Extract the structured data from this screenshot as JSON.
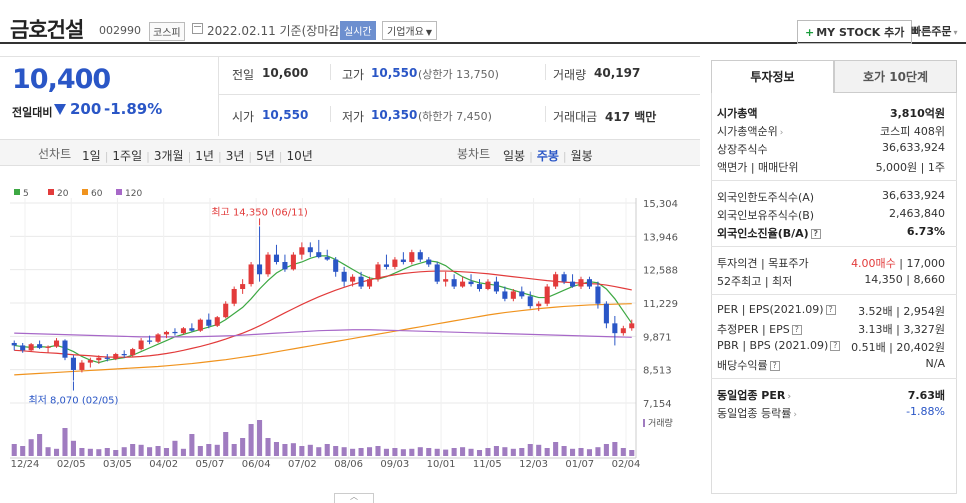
{
  "header": {
    "company": "금호건설",
    "code": "002990",
    "market": "코스피",
    "date_basis": "2022.02.11 기준(장마감)",
    "realtime": "실시간",
    "corp_overview": "기업개요",
    "mystock": "MY STOCK 추가",
    "quick_order": "빠른주문"
  },
  "price": {
    "current": "10,400",
    "compare_label": "전일대비",
    "change": "200",
    "change_pct": "-1.89%",
    "direction": "down",
    "accent_down": "#2a56c6",
    "accent_up": "#e23b3b"
  },
  "quote": {
    "prev_close_label": "전일",
    "prev_close": "10,600",
    "high_label": "고가",
    "high": "10,550",
    "upper_limit": "(상한가 13,750)",
    "volume_label": "거래량",
    "volume": "40,197",
    "open_label": "시가",
    "open": "10,550",
    "low_label": "저가",
    "low": "10,350",
    "lower_limit": "(하한가 7,450)",
    "amount_label": "거래대금",
    "amount": "417 백만"
  },
  "chart_toolbar": {
    "range_label": "선차트",
    "ranges": [
      "1일",
      "1주일",
      "3개월",
      "1년",
      "3년",
      "5년",
      "10년"
    ],
    "candle_label": "봉차트",
    "candles": [
      "일봉",
      "주봉",
      "월봉"
    ],
    "selected_candle": "주봉"
  },
  "chart_data": {
    "type": "candlestick",
    "legend": [
      "5",
      "20",
      "60",
      "120"
    ],
    "legend_colors": [
      "#3da843",
      "#e23b3b",
      "#f0931e",
      "#a768c8"
    ],
    "y_ticks": [
      "15,304",
      "13,946",
      "12,588",
      "11,229",
      "9,871",
      "8,513",
      "7,154"
    ],
    "ylim": [
      7154,
      15304
    ],
    "x_ticks": [
      "12/24",
      "02/05",
      "03/05",
      "04/02",
      "05/07",
      "06/04",
      "07/02",
      "08/06",
      "09/03",
      "10/01",
      "11/05",
      "12/03",
      "01/07",
      "02/04"
    ],
    "max_annotation": "최고 14,350 (06/11)",
    "min_annotation": "최저 8,070 (02/05)",
    "volume_label": "거래량",
    "candles": [
      [
        9600,
        9700,
        9300,
        9500
      ],
      [
        9500,
        9600,
        9200,
        9300
      ],
      [
        9300,
        9600,
        9250,
        9550
      ],
      [
        9550,
        9700,
        9350,
        9400
      ],
      [
        9400,
        9500,
        9200,
        9450
      ],
      [
        9450,
        9800,
        9400,
        9700
      ],
      [
        9700,
        9750,
        8900,
        9000
      ],
      [
        9000,
        9100,
        8070,
        8500
      ],
      [
        8500,
        8900,
        8400,
        8800
      ],
      [
        8800,
        9000,
        8600,
        8900
      ],
      [
        8900,
        9100,
        8750,
        9000
      ],
      [
        9000,
        9150,
        8850,
        8950
      ],
      [
        8950,
        9200,
        8900,
        9150
      ],
      [
        9150,
        9300,
        9000,
        9100
      ],
      [
        9100,
        9400,
        9050,
        9350
      ],
      [
        9350,
        9800,
        9300,
        9700
      ],
      [
        9700,
        9900,
        9550,
        9650
      ],
      [
        9650,
        10000,
        9600,
        9950
      ],
      [
        9950,
        10100,
        9800,
        10050
      ],
      [
        10050,
        10200,
        9900,
        10000
      ],
      [
        10000,
        10250,
        9950,
        10200
      ],
      [
        10200,
        10400,
        10050,
        10100
      ],
      [
        10100,
        10600,
        10050,
        10550
      ],
      [
        10550,
        10800,
        10200,
        10300
      ],
      [
        10300,
        10700,
        10250,
        10650
      ],
      [
        10650,
        11300,
        10600,
        11200
      ],
      [
        11200,
        11900,
        11100,
        11800
      ],
      [
        11800,
        12200,
        11600,
        12000
      ],
      [
        12000,
        12900,
        11900,
        12800
      ],
      [
        12800,
        14350,
        12100,
        12400
      ],
      [
        12400,
        13300,
        12300,
        13200
      ],
      [
        13200,
        13600,
        12800,
        12900
      ],
      [
        12900,
        13200,
        12500,
        12600
      ],
      [
        12600,
        13300,
        12550,
        13200
      ],
      [
        13200,
        13700,
        13000,
        13500
      ],
      [
        13500,
        13700,
        13100,
        13300
      ],
      [
        13300,
        13800,
        13050,
        13100
      ],
      [
        13100,
        13400,
        12950,
        13000
      ],
      [
        13000,
        13100,
        12300,
        12500
      ],
      [
        12500,
        12700,
        11900,
        12100
      ],
      [
        12100,
        12400,
        11900,
        12300
      ],
      [
        12300,
        12500,
        11800,
        11900
      ],
      [
        11900,
        12300,
        11800,
        12200
      ],
      [
        12200,
        12900,
        12100,
        12800
      ],
      [
        12800,
        13200,
        12600,
        12700
      ],
      [
        12700,
        13100,
        12600,
        13000
      ],
      [
        13000,
        13300,
        12800,
        12900
      ],
      [
        12900,
        13400,
        12800,
        13300
      ],
      [
        13300,
        13400,
        12900,
        13000
      ],
      [
        13000,
        13100,
        12700,
        12800
      ],
      [
        12800,
        12900,
        12000,
        12100
      ],
      [
        12100,
        12500,
        11900,
        12200
      ],
      [
        12200,
        12400,
        11800,
        11900
      ],
      [
        11900,
        12300,
        11850,
        12100
      ],
      [
        12100,
        12400,
        11900,
        12000
      ],
      [
        12000,
        12200,
        11700,
        11800
      ],
      [
        11800,
        12200,
        11750,
        12100
      ],
      [
        12100,
        12300,
        11600,
        11700
      ],
      [
        11700,
        11900,
        11300,
        11400
      ],
      [
        11400,
        11800,
        11300,
        11700
      ],
      [
        11700,
        11900,
        11400,
        11500
      ],
      [
        11500,
        11700,
        11000,
        11100
      ],
      [
        11100,
        11300,
        10900,
        11200
      ],
      [
        11200,
        12000,
        11100,
        11900
      ],
      [
        11900,
        12500,
        11800,
        12400
      ],
      [
        12400,
        12500,
        12000,
        12100
      ],
      [
        12100,
        12400,
        11850,
        11900
      ],
      [
        11900,
        12300,
        11800,
        12200
      ],
      [
        12200,
        12300,
        11800,
        11900
      ],
      [
        11900,
        12100,
        11000,
        11200
      ],
      [
        11200,
        11300,
        10200,
        10400
      ],
      [
        10400,
        10700,
        9500,
        10000
      ],
      [
        10000,
        10300,
        9900,
        10200
      ],
      [
        10200,
        10550,
        10100,
        10400
      ]
    ],
    "volumes": [
      30,
      25,
      42,
      55,
      22,
      18,
      70,
      38,
      20,
      18,
      17,
      20,
      15,
      22,
      30,
      28,
      22,
      25,
      20,
      38,
      18,
      55,
      25,
      30,
      28,
      60,
      30,
      45,
      80,
      90,
      45,
      35,
      30,
      32,
      25,
      28,
      22,
      30,
      25,
      22,
      18,
      20,
      22,
      25,
      18,
      20,
      17,
      18,
      22,
      20,
      18,
      16,
      20,
      22,
      18,
      15,
      20,
      25,
      22,
      18,
      20,
      30,
      28,
      20,
      35,
      25,
      18,
      20,
      17,
      22,
      30,
      35,
      20,
      15
    ],
    "ma5": [
      9500,
      9450,
      9420,
      9450,
      9430,
      9500,
      9400,
      9250,
      9050,
      8900,
      8800,
      8900,
      8950,
      9000,
      9100,
      9250,
      9400,
      9550,
      9700,
      9850,
      9950,
      10050,
      10150,
      10250,
      10350,
      10550,
      10800,
      11050,
      11400,
      11800,
      12150,
      12450,
      12650,
      12800,
      12900,
      13050,
      13150,
      13150,
      13000,
      12800,
      12600,
      12400,
      12250,
      12200,
      12300,
      12450,
      12600,
      12750,
      12850,
      12950,
      12900,
      12750,
      12500,
      12300,
      12150,
      12050,
      12000,
      11950,
      11850,
      11750,
      11650,
      11550,
      11450,
      11450,
      11600,
      11750,
      11900,
      12000,
      12100,
      12050,
      11800,
      11400,
      10900,
      10400
    ],
    "ma20": [
      9300,
      9280,
      9250,
      9220,
      9200,
      9180,
      9150,
      9120,
      9100,
      9080,
      9050,
      9030,
      9020,
      9020,
      9030,
      9050,
      9080,
      9120,
      9170,
      9230,
      9300,
      9380,
      9460,
      9550,
      9650,
      9760,
      9880,
      10000,
      10140,
      10300,
      10470,
      10650,
      10830,
      11000,
      11170,
      11330,
      11480,
      11620,
      11750,
      11870,
      11980,
      12080,
      12170,
      12250,
      12320,
      12380,
      12430,
      12470,
      12500,
      12520,
      12530,
      12530,
      12520,
      12500,
      12480,
      12450,
      12420,
      12380,
      12340,
      12300,
      12260,
      12220,
      12180,
      12140,
      12110,
      12080,
      12060,
      12040,
      12020,
      12000,
      11960,
      11900,
      11830,
      11760
    ],
    "ma60": [
      8300,
      8320,
      8340,
      8360,
      8380,
      8400,
      8420,
      8440,
      8460,
      8480,
      8500,
      8520,
      8540,
      8560,
      8580,
      8600,
      8620,
      8640,
      8670,
      8700,
      8730,
      8760,
      8800,
      8840,
      8880,
      8920,
      8970,
      9020,
      9070,
      9120,
      9180,
      9240,
      9300,
      9360,
      9420,
      9480,
      9540,
      9600,
      9660,
      9720,
      9780,
      9840,
      9900,
      9960,
      10020,
      10080,
      10140,
      10200,
      10260,
      10320,
      10380,
      10440,
      10500,
      10560,
      10620,
      10680,
      10740,
      10790,
      10840,
      10880,
      10920,
      10960,
      11000,
      11030,
      11060,
      11090,
      11110,
      11130,
      11150,
      11160,
      11170,
      11180,
      11190,
      11200
    ],
    "ma120": [
      10000,
      9990,
      9980,
      9970,
      9960,
      9950,
      9940,
      9930,
      9920,
      9910,
      9900,
      9890,
      9880,
      9870,
      9860,
      9850,
      9850,
      9850,
      9850,
      9850,
      9850,
      9850,
      9860,
      9870,
      9880,
      9890,
      9900,
      9920,
      9940,
      9960,
      9980,
      10000,
      10020,
      10040,
      10060,
      10080,
      10100,
      10110,
      10120,
      10130,
      10140,
      10140,
      10140,
      10130,
      10120,
      10110,
      10100,
      10090,
      10080,
      10070,
      10060,
      10050,
      10040,
      10030,
      10020,
      10010,
      10000,
      9990,
      9980,
      9970,
      9960,
      9950,
      9940,
      9930,
      9920,
      9910,
      9900,
      9890,
      9880,
      9870,
      9860,
      9850,
      9840,
      9830
    ]
  },
  "invest_panel": {
    "tab_active": "투자정보",
    "tab_other": "호가 10단계",
    "rows1": [
      {
        "label": "시가총액",
        "value": "3,810억원",
        "bold": true
      },
      {
        "label": "시가총액순위",
        "value": "코스피 408위",
        "arrow": true
      },
      {
        "label": "상장주식수",
        "value": "36,633,924"
      },
      {
        "label": "액면가 | 매매단위",
        "value": "5,000원 | 1주"
      }
    ],
    "rows2": [
      {
        "label": "외국인한도주식수(A)",
        "value": "36,633,924"
      },
      {
        "label": "외국인보유주식수(B)",
        "value": "2,463,840"
      },
      {
        "label": "외국인소진율(B/A)",
        "value": "6.73%",
        "bold": true,
        "help": true
      }
    ],
    "rows3": [
      {
        "label": "투자의견 | 목표주가",
        "value_red": "4.00매수",
        "value": " | 17,000"
      },
      {
        "label": "52주최고 | 최저",
        "value": "14,350 | 8,660"
      }
    ],
    "rows4": [
      {
        "label": "PER | EPS(2021.09)",
        "value": "3.52배 | 2,954원",
        "help": true
      },
      {
        "label": "추정PER | EPS",
        "value": "3.13배 | 3,327원",
        "help": true
      },
      {
        "label": "PBR | BPS (2021.09)",
        "value": "0.51배 | 20,402원",
        "help": true
      },
      {
        "label": "배당수익률",
        "value": "N/A",
        "help": true
      }
    ],
    "rows5": [
      {
        "label": "동일업종 PER",
        "value": "7.63배",
        "bold": true,
        "arrow": true
      },
      {
        "label": "동일업종 등락률",
        "value": "-1.88%",
        "blue": true,
        "arrow": true
      }
    ]
  }
}
